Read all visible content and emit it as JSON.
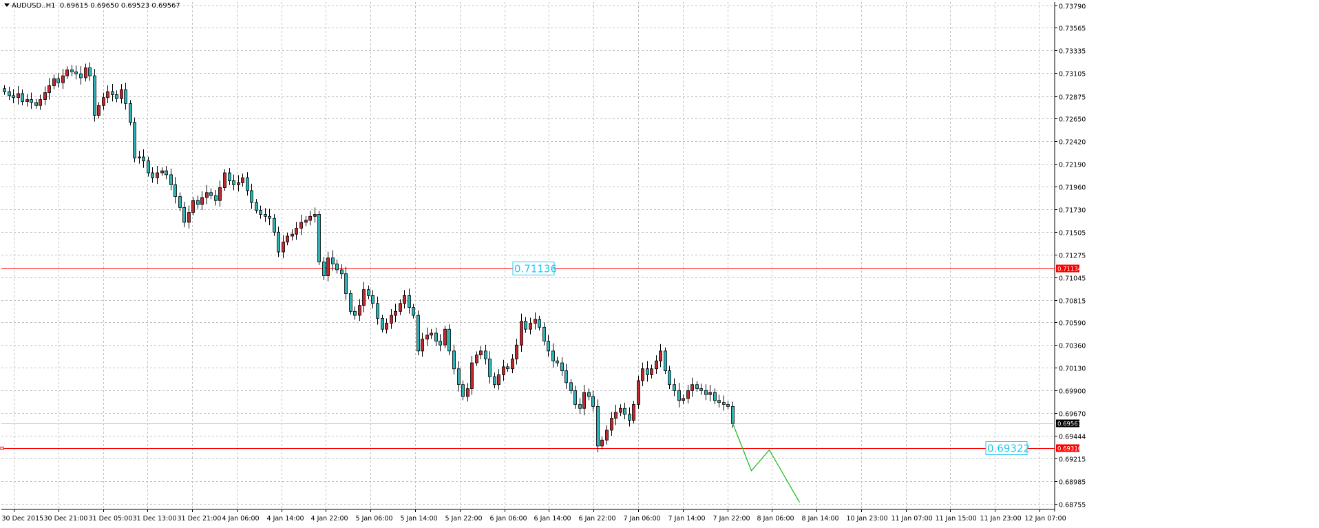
{
  "header": {
    "symbol": "AUDUSD..H1",
    "ohlc": "0.69615 0.69650 0.69523 0.69567"
  },
  "colors": {
    "grid": "#c0c0c0",
    "bull": "#c0282e",
    "bear": "#2bb3b8",
    "candle_outline": "#000000",
    "hline": "#ff0000",
    "projection": "#22bb22",
    "label_box": "#1ec8f0",
    "price_bg": "#000000"
  },
  "chart_data": {
    "type": "candlestick",
    "instrument": "AUDUSD",
    "timeframe": "H1",
    "ylim": [
      0.68755,
      0.7379
    ],
    "yticks": [
      "0.73790",
      "0.73565",
      "0.73335",
      "0.73105",
      "0.72875",
      "0.72650",
      "0.72420",
      "0.72190",
      "0.71960",
      "0.71730",
      "0.71505",
      "0.71275",
      "0.71045",
      "0.70815",
      "0.70590",
      "0.70360",
      "0.70130",
      "0.69900",
      "0.69670",
      "0.69444",
      "0.69215",
      "0.68985",
      "0.68755"
    ],
    "xticks": [
      "30 Dec 2015",
      "30 Dec 21:00",
      "31 Dec 05:00",
      "31 Dec 13:00",
      "31 Dec 21:00",
      "4 Jan 06:00",
      "4 Jan 14:00",
      "4 Jan 22:00",
      "5 Jan 06:00",
      "5 Jan 14:00",
      "5 Jan 22:00",
      "6 Jan 06:00",
      "6 Jan 14:00",
      "6 Jan 22:00",
      "7 Jan 06:00",
      "7 Jan 14:00",
      "7 Jan 22:00",
      "8 Jan 06:00",
      "8 Jan 14:00",
      "10 Jan 23:00",
      "11 Jan 07:00",
      "11 Jan 15:00",
      "11 Jan 23:00",
      "12 Jan 07:00"
    ],
    "close_path": [
      0.7292,
      0.7288,
      0.7286,
      0.729,
      0.7282,
      0.7284,
      0.7281,
      0.7278,
      0.7284,
      0.7291,
      0.7298,
      0.7305,
      0.7301,
      0.7308,
      0.7314,
      0.7312,
      0.731,
      0.7306,
      0.7316,
      0.7308,
      0.7268,
      0.7278,
      0.7286,
      0.7292,
      0.7289,
      0.7285,
      0.7294,
      0.728,
      0.7261,
      0.7225,
      0.7226,
      0.7222,
      0.721,
      0.7205,
      0.721,
      0.7212,
      0.7208,
      0.7198,
      0.7186,
      0.7175,
      0.716,
      0.717,
      0.7182,
      0.7178,
      0.7185,
      0.719,
      0.7187,
      0.7182,
      0.7195,
      0.721,
      0.7202,
      0.7198,
      0.72,
      0.7205,
      0.7192,
      0.718,
      0.7172,
      0.7168,
      0.7166,
      0.7164,
      0.715,
      0.713,
      0.714,
      0.7146,
      0.7148,
      0.7154,
      0.716,
      0.7162,
      0.7166,
      0.7168,
      0.712,
      0.7106,
      0.7124,
      0.7118,
      0.7112,
      0.7108,
      0.7088,
      0.707,
      0.7066,
      0.7076,
      0.7092,
      0.7086,
      0.7078,
      0.7063,
      0.7052,
      0.7058,
      0.7066,
      0.707,
      0.7078,
      0.7086,
      0.7074,
      0.7066,
      0.703,
      0.7042,
      0.7046,
      0.7048,
      0.704,
      0.7036,
      0.7052,
      0.703,
      0.7012,
      0.6996,
      0.6984,
      0.6992,
      0.7018,
      0.7026,
      0.703,
      0.7022,
      0.7004,
      0.6996,
      0.7006,
      0.7014,
      0.7012,
      0.7022,
      0.7036,
      0.706,
      0.7052,
      0.7058,
      0.7062,
      0.7054,
      0.704,
      0.703,
      0.702,
      0.7018,
      0.701,
      0.6998,
      0.699,
      0.6976,
      0.6972,
      0.6988,
      0.6984,
      0.6974,
      0.6934,
      0.694,
      0.695,
      0.6962,
      0.6968,
      0.6972,
      0.6966,
      0.696,
      0.6976,
      0.7,
      0.7012,
      0.7006,
      0.7012,
      0.702,
      0.703,
      0.701,
      0.6996,
      0.699,
      0.698,
      0.6982,
      0.699,
      0.6996,
      0.6992,
      0.699,
      0.6986,
      0.6988,
      0.698,
      0.6978,
      0.6976,
      0.6974,
      0.69567
    ],
    "levels": [
      {
        "value": 0.71134,
        "axis_label": "0.71134",
        "box_label": "0.71136"
      },
      {
        "value": 0.69316,
        "axis_label": "0.69316",
        "box_label": "0.69322"
      }
    ],
    "current_price": "0.69567",
    "projection": [
      0.69567,
      0.6909,
      0.693,
      0.6877
    ]
  }
}
